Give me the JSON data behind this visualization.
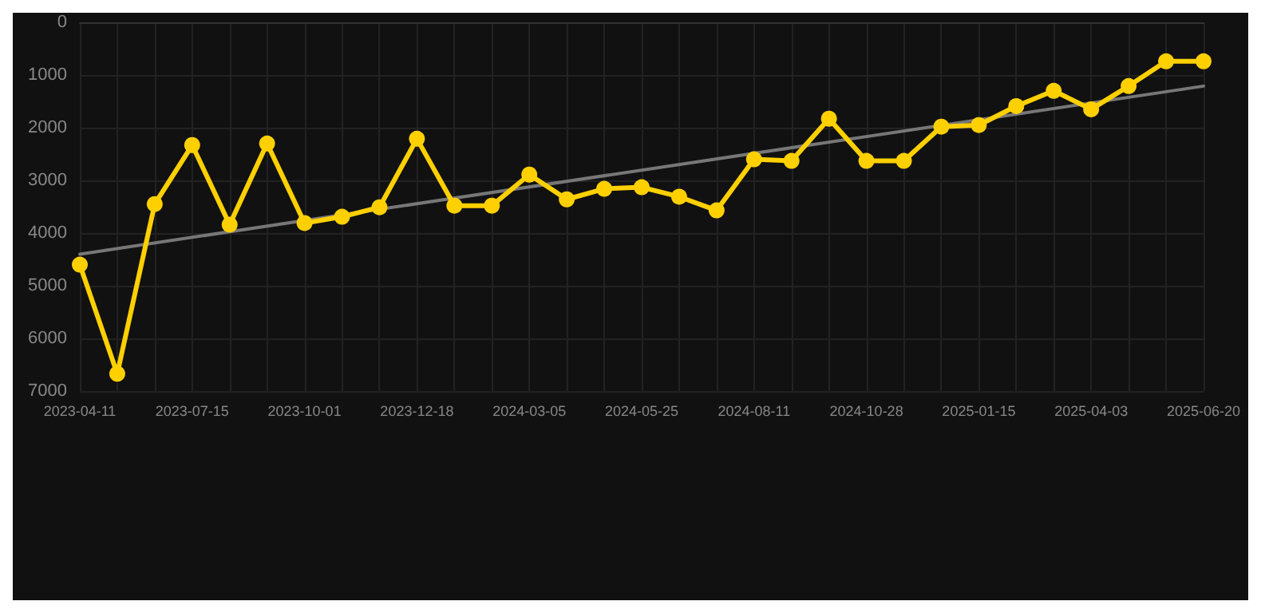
{
  "chart_data": {
    "type": "line",
    "categories": [
      "2023-04-11",
      null,
      null,
      "2023-07-15",
      null,
      null,
      "2023-10-01",
      null,
      null,
      "2023-12-18",
      null,
      null,
      "2024-03-05",
      null,
      null,
      "2024-05-25",
      null,
      null,
      "2024-08-11",
      null,
      null,
      "2024-10-28",
      null,
      null,
      "2025-01-15",
      null,
      null,
      "2025-04-03",
      null,
      null,
      "2025-06-20"
    ],
    "series": [
      {
        "color": "#ffd000",
        "values": [
          4600,
          6670,
          3450,
          2330,
          3840,
          2300,
          3810,
          3690,
          3510,
          2210,
          3480,
          3480,
          2890,
          3360,
          3160,
          3130,
          3310,
          3570,
          2600,
          2630,
          1830,
          2630,
          2630,
          1980,
          1950,
          1590,
          1300,
          1650,
          1210,
          740,
          740
        ]
      },
      {
        "color": "#777777",
        "marker": "none",
        "values": [
          4400,
          null,
          null,
          null,
          null,
          null,
          null,
          null,
          null,
          null,
          null,
          null,
          null,
          null,
          null,
          null,
          null,
          null,
          null,
          null,
          null,
          null,
          null,
          null,
          null,
          null,
          null,
          null,
          null,
          null,
          1210
        ]
      }
    ],
    "ylim": [
      7000,
      0
    ],
    "yticks": [
      0,
      1000,
      2000,
      3000,
      4000,
      5000,
      6000,
      7000
    ],
    "grid": true,
    "marker": "circle",
    "line_style": "solid"
  }
}
